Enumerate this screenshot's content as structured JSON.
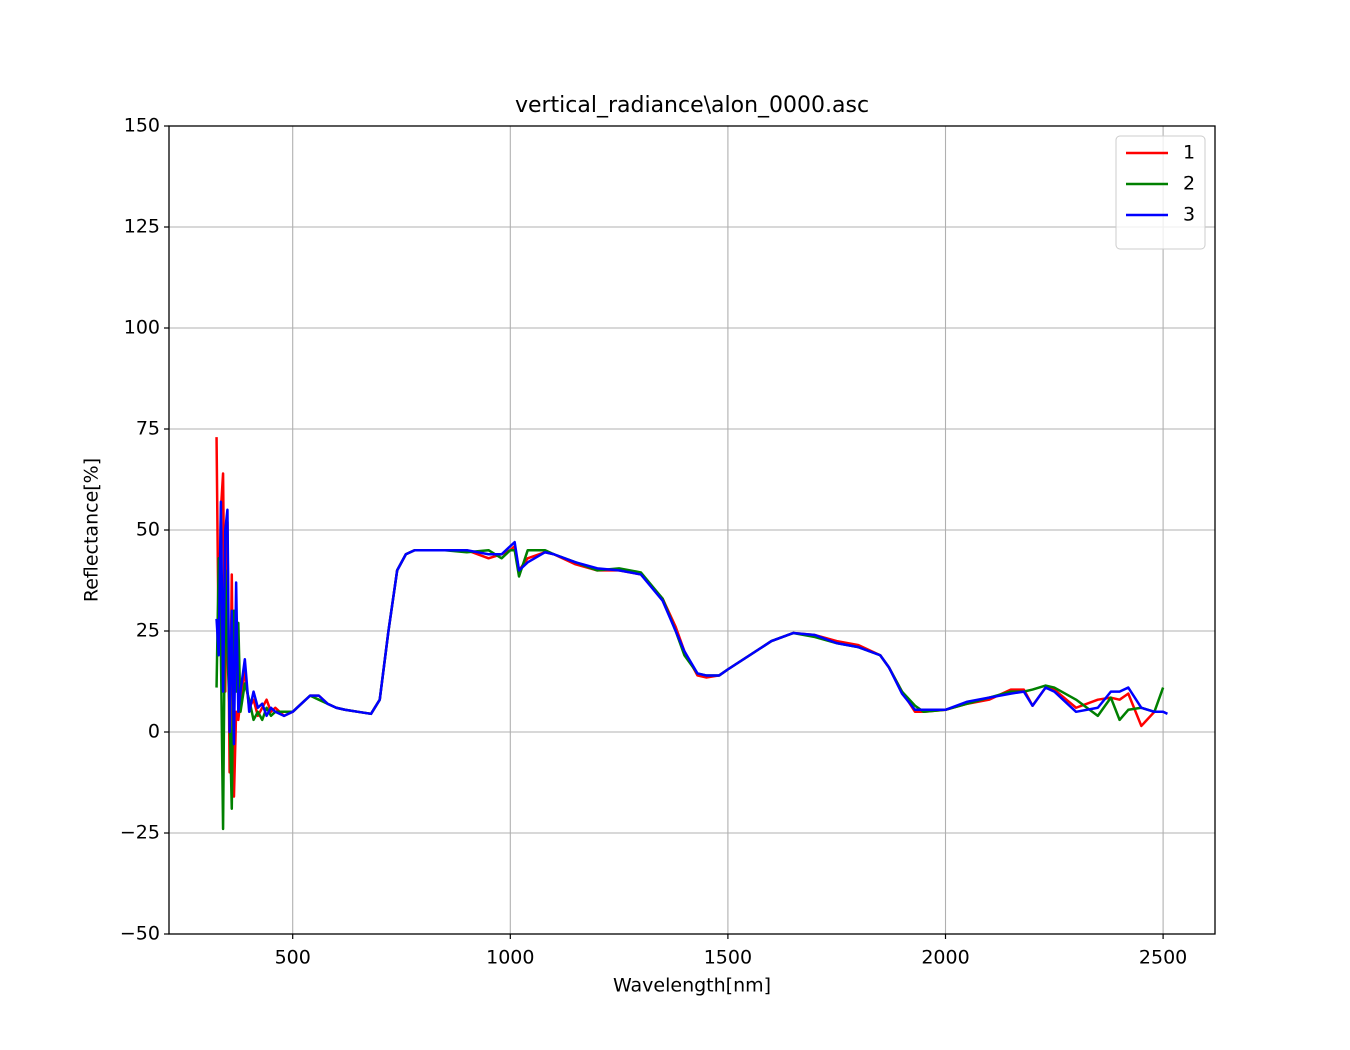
{
  "chart_data": {
    "type": "line",
    "title": "vertical_radiance\\alon_0000.asc",
    "xlabel": "Wavelength[nm]",
    "ylabel": "Reflectance[%]",
    "x": [
      325,
      330,
      335,
      340,
      345,
      350,
      355,
      360,
      365,
      370,
      375,
      380,
      390,
      400,
      410,
      420,
      430,
      440,
      450,
      460,
      480,
      500,
      520,
      540,
      560,
      580,
      600,
      620,
      650,
      680,
      700,
      720,
      740,
      760,
      780,
      800,
      850,
      900,
      950,
      980,
      1000,
      1010,
      1020,
      1040,
      1080,
      1100,
      1150,
      1200,
      1250,
      1300,
      1350,
      1380,
      1400,
      1430,
      1450,
      1480,
      1500,
      1550,
      1600,
      1650,
      1700,
      1750,
      1800,
      1850,
      1870,
      1900,
      1930,
      1950,
      2000,
      2050,
      2100,
      2150,
      2180,
      2200,
      2230,
      2250,
      2300,
      2350,
      2380,
      2400,
      2420,
      2450,
      2480,
      2500,
      2510
    ],
    "series": [
      {
        "name": "1",
        "color": "#ff0000",
        "values": [
          73,
          20,
          55,
          64,
          10,
          52,
          -10,
          39,
          -16,
          5,
          3,
          8,
          15,
          6,
          8,
          4,
          6,
          8,
          5,
          6,
          4,
          5,
          7,
          9,
          9,
          7,
          6,
          5.5,
          5,
          4.5,
          8,
          25,
          40,
          44,
          45,
          45,
          45,
          45,
          43,
          44,
          45,
          46,
          40,
          43,
          44.5,
          44,
          41.5,
          40,
          40,
          39,
          33,
          26,
          20,
          14,
          13.5,
          14,
          15.5,
          19,
          22.5,
          24.5,
          24,
          22.5,
          21.5,
          19,
          16,
          10,
          5,
          5,
          5.5,
          7,
          8,
          10.5,
          10.5,
          6.5,
          11,
          10.5,
          6,
          8,
          8.5,
          8,
          9.5,
          1.5,
          5,
          null,
          null
        ]
      },
      {
        "name": "2",
        "color": "#008000",
        "values": [
          11,
          43,
          20,
          -24,
          40,
          20,
          5,
          -19,
          30,
          10,
          27,
          5,
          12,
          8,
          3,
          5,
          3,
          6,
          4,
          5,
          5,
          5,
          7,
          9,
          8,
          7,
          6,
          5.5,
          5,
          4.5,
          8,
          25,
          40,
          44,
          45,
          45,
          45,
          44.5,
          45,
          43,
          45,
          45,
          38.5,
          45,
          45,
          44,
          42,
          40,
          40.5,
          39.5,
          33,
          25,
          19,
          14.5,
          14,
          14,
          15.5,
          19,
          22.5,
          24.5,
          23.5,
          22,
          21,
          19,
          16,
          10,
          6.5,
          5,
          5.5,
          7,
          8.5,
          10,
          10,
          10.5,
          11.5,
          11,
          8,
          4,
          8.5,
          3,
          5.5,
          6,
          5,
          11,
          null
        ]
      },
      {
        "name": "3",
        "color": "#0000ff",
        "values": [
          28,
          19,
          57,
          10,
          50,
          55,
          0,
          30,
          -3,
          37,
          5,
          10,
          18,
          5,
          10,
          6,
          7,
          4,
          6,
          5,
          4,
          5,
          7,
          9,
          9,
          7,
          6,
          5.5,
          5,
          4.5,
          8,
          25,
          40,
          44,
          45,
          45,
          45,
          45,
          44,
          44,
          46,
          47,
          40,
          42,
          44.5,
          44,
          42,
          40.5,
          40,
          39,
          32.5,
          25,
          20,
          14.5,
          14,
          14,
          15.5,
          19,
          22.5,
          24.5,
          24,
          22,
          21,
          19,
          16,
          9.5,
          5.5,
          5.5,
          5.5,
          7.5,
          8.5,
          9.5,
          10,
          6.5,
          11,
          10,
          5,
          6,
          10,
          10,
          11,
          6,
          5,
          5,
          4.5
        ]
      }
    ],
    "xlim": [
      215.75,
      2619.25
    ],
    "xticks": [
      500,
      1000,
      1500,
      2000,
      2500
    ],
    "ylim": [
      -50,
      150
    ],
    "yticks": [
      {
        "value": -50,
        "label": "−50"
      },
      {
        "value": -25,
        "label": "−25"
      },
      0,
      25,
      50,
      75,
      100,
      125,
      150
    ],
    "grid": true,
    "legend": "upper right"
  }
}
